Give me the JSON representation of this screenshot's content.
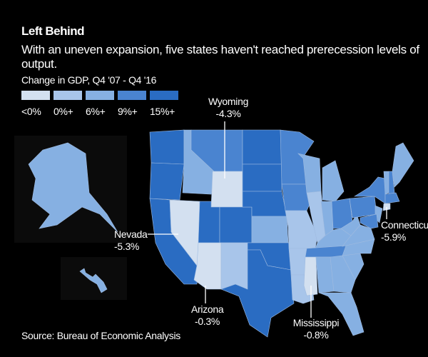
{
  "title": "Left Behind",
  "subtitle": "With an uneven expansion, five states haven't reached prerecession levels of output.",
  "legend": {
    "title": "Change in GDP, Q4 '07 - Q4 '16",
    "bins": [
      {
        "label": "<0%",
        "color": "#d3e0f0"
      },
      {
        "label": "0%+",
        "color": "#a8c5ea"
      },
      {
        "label": "6%+",
        "color": "#86b0e2"
      },
      {
        "label": "9%+",
        "color": "#4a84d0"
      },
      {
        "label": "15%+",
        "color": "#2a6cc2"
      }
    ]
  },
  "map_data": {
    "states": [
      {
        "id": "WA",
        "bin": 4
      },
      {
        "id": "OR",
        "bin": 4
      },
      {
        "id": "CA",
        "bin": 4
      },
      {
        "id": "NV",
        "bin": 0
      },
      {
        "id": "ID",
        "bin": 2
      },
      {
        "id": "MT",
        "bin": 3
      },
      {
        "id": "WY",
        "bin": 0
      },
      {
        "id": "UT",
        "bin": 4
      },
      {
        "id": "CO",
        "bin": 4
      },
      {
        "id": "AZ",
        "bin": 0
      },
      {
        "id": "NM",
        "bin": 1
      },
      {
        "id": "ND",
        "bin": 4
      },
      {
        "id": "SD",
        "bin": 4
      },
      {
        "id": "NE",
        "bin": 4
      },
      {
        "id": "KS",
        "bin": 2
      },
      {
        "id": "OK",
        "bin": 4
      },
      {
        "id": "TX",
        "bin": 4
      },
      {
        "id": "MN",
        "bin": 3
      },
      {
        "id": "IA",
        "bin": 3
      },
      {
        "id": "MO",
        "bin": 1
      },
      {
        "id": "AR",
        "bin": 1
      },
      {
        "id": "LA",
        "bin": 1
      },
      {
        "id": "WI",
        "bin": 2
      },
      {
        "id": "IL",
        "bin": 1
      },
      {
        "id": "MI",
        "bin": 2
      },
      {
        "id": "IN",
        "bin": 2
      },
      {
        "id": "OH",
        "bin": 3
      },
      {
        "id": "KY",
        "bin": 2
      },
      {
        "id": "TN",
        "bin": 3
      },
      {
        "id": "MS",
        "bin": 0
      },
      {
        "id": "AL",
        "bin": 2
      },
      {
        "id": "GA",
        "bin": 2
      },
      {
        "id": "FL",
        "bin": 2
      },
      {
        "id": "SC",
        "bin": 2
      },
      {
        "id": "NC",
        "bin": 2
      },
      {
        "id": "VA",
        "bin": 2
      },
      {
        "id": "WV",
        "bin": 2
      },
      {
        "id": "PA",
        "bin": 3
      },
      {
        "id": "NY",
        "bin": 3
      },
      {
        "id": "VT",
        "bin": 2
      },
      {
        "id": "NH",
        "bin": 3
      },
      {
        "id": "ME",
        "bin": 2
      },
      {
        "id": "MA",
        "bin": 3
      },
      {
        "id": "CT",
        "bin": 0
      },
      {
        "id": "NJ",
        "bin": 2
      },
      {
        "id": "MD",
        "bin": 3
      },
      {
        "id": "AK",
        "bin": 2
      },
      {
        "id": "HI",
        "bin": 2
      }
    ]
  },
  "annotations": [
    {
      "state": "Wyoming",
      "value": "-4.3%"
    },
    {
      "state": "Nevada",
      "value": "-5.3%"
    },
    {
      "state": "Arizona",
      "value": "-0.3%"
    },
    {
      "state": "Mississippi",
      "value": "-0.8%"
    },
    {
      "state": "Connecticut",
      "value": "-5.9%"
    }
  ],
  "source": "Source: Bureau of Economic Analysis"
}
